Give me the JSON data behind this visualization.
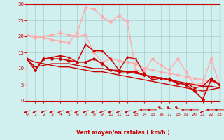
{
  "background_color": "#d0f0f0",
  "grid_color": "#b0c8c8",
  "xlabel": "Vent moyen/en rafales ( km/h )",
  "xlim": [
    0,
    23
  ],
  "ylim": [
    0,
    30
  ],
  "yticks": [
    0,
    5,
    10,
    15,
    20,
    25,
    30
  ],
  "xticks": [
    0,
    1,
    2,
    3,
    4,
    5,
    6,
    7,
    8,
    9,
    10,
    11,
    12,
    13,
    14,
    15,
    16,
    17,
    18,
    19,
    20,
    21,
    22,
    23
  ],
  "lines": [
    {
      "x": [
        0,
        1,
        2,
        3,
        4,
        5,
        6,
        7,
        8,
        9,
        10,
        11,
        12,
        13,
        14,
        15,
        16,
        17,
        18,
        19,
        20,
        21,
        22,
        23
      ],
      "y": [
        20.5,
        19.5,
        20.0,
        20.5,
        21.0,
        20.5,
        20.0,
        20.5,
        15.0,
        12.0,
        13.0,
        12.5,
        12.0,
        11.5,
        10.0,
        9.5,
        9.0,
        8.5,
        8.0,
        7.5,
        7.0,
        6.5,
        6.0,
        5.5
      ],
      "color": "#ffaaaa",
      "marker": "D",
      "ms": 2,
      "lw": 1.0
    },
    {
      "x": [
        0,
        1,
        2,
        3,
        4,
        5,
        6,
        7,
        8,
        9,
        10,
        11,
        12,
        13,
        14,
        15,
        16,
        17,
        18,
        19,
        20,
        21,
        22,
        23
      ],
      "y": [
        20.5,
        20.0,
        19.5,
        19.0,
        18.5,
        18.0,
        21.0,
        29.0,
        28.5,
        26.0,
        24.5,
        26.5,
        24.5,
        9.5,
        9.0,
        13.0,
        11.0,
        9.5,
        13.0,
        9.0,
        5.0,
        5.5,
        13.0,
        5.0
      ],
      "color": "#ffaaaa",
      "marker": "D",
      "ms": 2,
      "lw": 1.0
    },
    {
      "x": [
        0,
        1,
        2,
        3,
        4,
        5,
        6,
        7,
        8,
        9,
        10,
        11,
        12,
        13,
        14,
        15,
        16,
        17,
        18,
        19,
        20,
        21,
        22,
        23
      ],
      "y": [
        13.0,
        9.5,
        13.0,
        13.5,
        14.0,
        13.5,
        12.0,
        17.5,
        15.5,
        15.5,
        13.0,
        9.5,
        13.5,
        13.0,
        8.5,
        6.5,
        7.0,
        7.0,
        5.5,
        5.5,
        4.0,
        4.5,
        7.0,
        5.0
      ],
      "color": "#cc0000",
      "marker": "+",
      "ms": 3,
      "lw": 1.0
    },
    {
      "x": [
        0,
        1,
        2,
        3,
        4,
        5,
        6,
        7,
        8,
        9,
        10,
        11,
        12,
        13,
        14,
        15,
        16,
        17,
        18,
        19,
        20,
        21,
        22,
        23
      ],
      "y": [
        13.0,
        9.5,
        13.0,
        13.0,
        13.0,
        12.5,
        12.0,
        12.0,
        13.0,
        11.5,
        9.5,
        9.0,
        9.0,
        9.0,
        8.0,
        7.5,
        7.0,
        6.5,
        5.5,
        5.0,
        3.0,
        0.5,
        6.5,
        5.0
      ],
      "color": "#cc0000",
      "marker": "D",
      "ms": 2,
      "lw": 1.2
    },
    {
      "x": [
        0,
        1,
        2,
        3,
        4,
        5,
        6,
        7,
        8,
        9,
        10,
        11,
        12,
        13,
        14,
        15,
        16,
        17,
        18,
        19,
        20,
        21,
        22,
        23
      ],
      "y": [
        13.0,
        10.5,
        11.0,
        11.5,
        11.5,
        11.5,
        11.0,
        10.5,
        10.0,
        10.0,
        9.5,
        9.5,
        9.0,
        8.5,
        8.0,
        7.5,
        7.0,
        6.5,
        6.0,
        5.5,
        5.0,
        4.5,
        4.5,
        4.0
      ],
      "color": "#cc0000",
      "marker": null,
      "ms": 0,
      "lw": 1.0
    },
    {
      "x": [
        0,
        1,
        2,
        3,
        4,
        5,
        6,
        7,
        8,
        9,
        10,
        11,
        12,
        13,
        14,
        15,
        16,
        17,
        18,
        19,
        20,
        21,
        22,
        23
      ],
      "y": [
        13.0,
        12.0,
        11.5,
        11.0,
        10.5,
        10.5,
        10.0,
        9.5,
        9.0,
        9.0,
        8.5,
        8.0,
        7.5,
        7.0,
        6.5,
        6.0,
        5.5,
        5.0,
        4.5,
        4.0,
        3.5,
        3.0,
        3.5,
        4.0
      ],
      "color": "#cc0000",
      "marker": null,
      "ms": 0,
      "lw": 1.0
    }
  ],
  "arrow_angles": [
    225,
    225,
    225,
    225,
    225,
    225,
    225,
    225,
    225,
    225,
    225,
    225,
    225,
    225,
    270,
    270,
    315,
    315,
    315,
    270,
    270,
    225,
    270,
    270
  ],
  "tick_color": "#cc0000",
  "axis_color": "#cc0000",
  "xlabel_color": "#cc0000"
}
